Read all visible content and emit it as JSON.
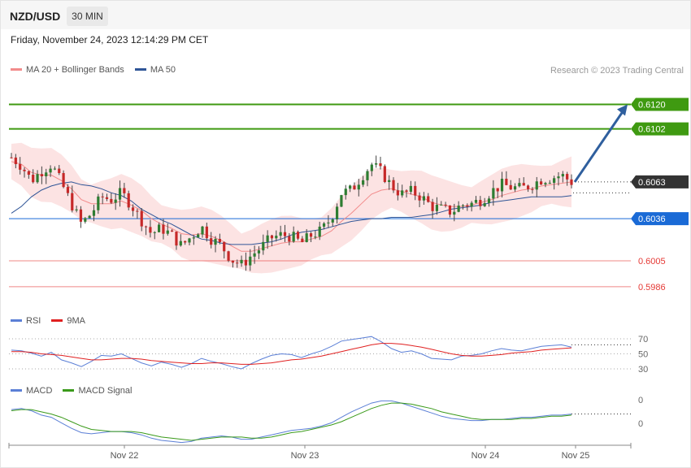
{
  "header": {
    "symbol": "NZD/USD",
    "timeframe": "30 MIN"
  },
  "datetime": "Friday, November 24, 2023 12:14:29 PM CET",
  "credit": "Research © 2023 Trading Central",
  "legends": {
    "price": [
      {
        "label": "MA 20 + Bollinger Bands",
        "color": "#f28b8b"
      },
      {
        "label": "MA 50",
        "color": "#2f5597"
      }
    ],
    "rsi": [
      {
        "label": "RSI",
        "color": "#5b7fd6"
      },
      {
        "label": "9MA",
        "color": "#e02020"
      }
    ],
    "macd": [
      {
        "label": "MACD",
        "color": "#5b7fd6"
      },
      {
        "label": "MACD Signal",
        "color": "#3a9a1a"
      }
    ]
  },
  "chart_data": [
    {
      "type": "candlestick",
      "ylim": [
        0.5968,
        0.6137
      ],
      "levels": [
        {
          "value": 0.612,
          "label": "0.6120",
          "color": "#3f9a11",
          "style": "solid-tag"
        },
        {
          "value": 0.6102,
          "label": "0.6102",
          "color": "#3f9a11",
          "style": "solid-tag"
        },
        {
          "value": 0.6063,
          "label": "0.6063",
          "color": "#333333",
          "style": "last-price"
        },
        {
          "value": 0.6036,
          "label": "0.6036",
          "color": "#1a6ad6",
          "style": "solid-tag"
        },
        {
          "value": 0.6005,
          "label": "0.6005",
          "color": "#e53935",
          "style": "text"
        },
        {
          "value": 0.5986,
          "label": "0.5986",
          "color": "#e53935",
          "style": "text"
        }
      ],
      "projection": {
        "from": 0.6063,
        "to": 0.612
      },
      "x_ticks": [
        "Nov 22",
        "Nov 23",
        "Nov 24",
        "Nov 25"
      ],
      "close_path": [
        0.6081,
        0.6075,
        0.6064,
        0.6071,
        0.6076,
        0.6062,
        0.6047,
        0.6032,
        0.604,
        0.6052,
        0.605,
        0.6055,
        0.6046,
        0.6035,
        0.6025,
        0.6029,
        0.6024,
        0.6016,
        0.6023,
        0.603,
        0.6021,
        0.6016,
        0.6006,
        0.6002,
        0.6009,
        0.6015,
        0.6022,
        0.6024,
        0.6023,
        0.6018,
        0.6024,
        0.6027,
        0.6037,
        0.6055,
        0.6057,
        0.6067,
        0.6076,
        0.607,
        0.606,
        0.6054,
        0.6056,
        0.6052,
        0.6045,
        0.6043,
        0.6041,
        0.6046,
        0.6047,
        0.605,
        0.6056,
        0.6061,
        0.6059,
        0.6058,
        0.6061,
        0.6065,
        0.6066,
        0.6068,
        0.6063
      ],
      "ma20": [
        0.6078,
        0.6076,
        0.607,
        0.6068,
        0.6068,
        0.6064,
        0.6058,
        0.605,
        0.6047,
        0.6047,
        0.6047,
        0.6049,
        0.6046,
        0.6042,
        0.6036,
        0.6032,
        0.6029,
        0.6025,
        0.6024,
        0.6025,
        0.6023,
        0.602,
        0.6016,
        0.6012,
        0.6012,
        0.6014,
        0.6016,
        0.6018,
        0.6019,
        0.6019,
        0.6021,
        0.6023,
        0.6027,
        0.6034,
        0.604,
        0.6047,
        0.6054,
        0.6057,
        0.6058,
        0.6056,
        0.6054,
        0.6052,
        0.6048,
        0.6046,
        0.6045,
        0.6045,
        0.6046,
        0.6048,
        0.605,
        0.6053,
        0.6055,
        0.6057,
        0.6058,
        0.606,
        0.6061,
        0.6062,
        0.6063
      ],
      "ma50": [
        0.604,
        0.6045,
        0.6052,
        0.6057,
        0.606,
        0.6062,
        0.6063,
        0.6061,
        0.606,
        0.6058,
        0.6055,
        0.6053,
        0.6049,
        0.6043,
        0.6039,
        0.6035,
        0.6032,
        0.6028,
        0.6024,
        0.6021,
        0.602,
        0.6018,
        0.6017,
        0.6017,
        0.6017,
        0.6018,
        0.6019,
        0.6021,
        0.6024,
        0.6026,
        0.6027,
        0.6028,
        0.603,
        0.6032,
        0.6034,
        0.6035,
        0.6036,
        0.6036,
        0.6037,
        0.6037,
        0.6037,
        0.6038,
        0.6039,
        0.6041,
        0.6043,
        0.6044,
        0.6045,
        0.6046,
        0.6048,
        0.6049,
        0.605,
        0.6051,
        0.6052,
        0.6052,
        0.6052,
        0.6052,
        0.6053
      ]
    },
    {
      "type": "line",
      "name": "RSI",
      "ylim": [
        30,
        70
      ],
      "y_ticks": [
        70,
        50,
        30
      ],
      "rsi": [
        55,
        54,
        51,
        47,
        52,
        42,
        38,
        33,
        40,
        48,
        47,
        50,
        44,
        38,
        34,
        39,
        36,
        32,
        37,
        44,
        40,
        37,
        33,
        30,
        37,
        43,
        48,
        50,
        49,
        45,
        50,
        54,
        60,
        67,
        69,
        71,
        73,
        66,
        57,
        52,
        54,
        50,
        44,
        43,
        42,
        47,
        48,
        50,
        54,
        57,
        55,
        54,
        57,
        60,
        61,
        62,
        59
      ],
      "rsi_ma9": [
        53,
        53,
        52,
        50,
        49,
        48,
        46,
        44,
        42,
        42,
        43,
        44,
        44,
        43,
        41,
        40,
        39,
        38,
        37,
        37,
        38,
        38,
        37,
        36,
        36,
        37,
        38,
        40,
        42,
        43,
        45,
        47,
        50,
        53,
        56,
        59,
        62,
        64,
        64,
        63,
        61,
        59,
        56,
        53,
        50,
        48,
        47,
        47,
        48,
        49,
        51,
        52,
        53,
        55,
        56,
        57,
        58
      ]
    },
    {
      "type": "line",
      "name": "MACD",
      "y_ticks": [
        0,
        0
      ],
      "macd": [
        8,
        9,
        7,
        3,
        1,
        -4,
        -9,
        -13,
        -14,
        -13,
        -12,
        -12,
        -13,
        -15,
        -18,
        -20,
        -21,
        -22,
        -21,
        -18,
        -17,
        -16,
        -17,
        -19,
        -19,
        -17,
        -15,
        -13,
        -11,
        -10,
        -9,
        -7,
        -4,
        1,
        6,
        10,
        14,
        16,
        16,
        14,
        11,
        8,
        5,
        2,
        0,
        -1,
        -2,
        -2,
        -1,
        -1,
        0,
        1,
        1,
        2,
        3,
        3,
        4
      ],
      "signal": [
        7,
        8,
        8,
        6,
        4,
        1,
        -3,
        -7,
        -10,
        -11,
        -12,
        -12,
        -12,
        -13,
        -15,
        -17,
        -18,
        -19,
        -20,
        -19,
        -18,
        -17,
        -17,
        -17,
        -18,
        -18,
        -17,
        -15,
        -13,
        -12,
        -10,
        -8,
        -6,
        -3,
        1,
        5,
        9,
        12,
        14,
        14,
        13,
        11,
        9,
        6,
        4,
        2,
        0,
        -1,
        -1,
        -1,
        -1,
        0,
        0,
        1,
        2,
        2,
        3
      ]
    }
  ]
}
